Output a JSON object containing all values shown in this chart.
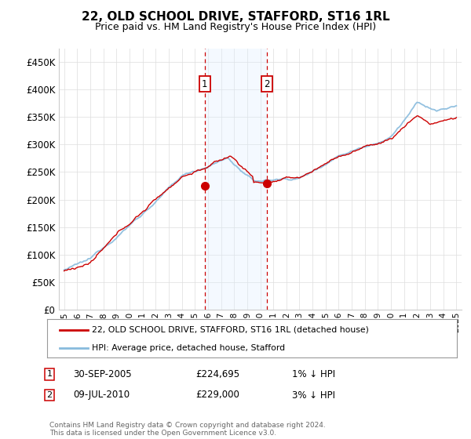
{
  "title": "22, OLD SCHOOL DRIVE, STAFFORD, ST16 1RL",
  "subtitle": "Price paid vs. HM Land Registry's House Price Index (HPI)",
  "legend_label_red": "22, OLD SCHOOL DRIVE, STAFFORD, ST16 1RL (detached house)",
  "legend_label_blue": "HPI: Average price, detached house, Stafford",
  "annotation1_date": "30-SEP-2005",
  "annotation1_price": "£224,695",
  "annotation1_hpi": "1% ↓ HPI",
  "annotation1_year": 2005.75,
  "annotation2_date": "09-JUL-2010",
  "annotation2_price": "£229,000",
  "annotation2_hpi": "3% ↓ HPI",
  "annotation2_year": 2010.5,
  "footer": "Contains HM Land Registry data © Crown copyright and database right 2024.\nThis data is licensed under the Open Government Licence v3.0.",
  "ylim": [
    0,
    475000
  ],
  "yticks": [
    0,
    50000,
    100000,
    150000,
    200000,
    250000,
    300000,
    350000,
    400000,
    450000
  ],
  "yticklabels": [
    "£0",
    "£50K",
    "£100K",
    "£150K",
    "£200K",
    "£250K",
    "£300K",
    "£350K",
    "£400K",
    "£450K"
  ],
  "xlim_start": 1994.6,
  "xlim_end": 2025.4,
  "xticks": [
    1995,
    1996,
    1997,
    1998,
    1999,
    2000,
    2001,
    2002,
    2003,
    2004,
    2005,
    2006,
    2007,
    2008,
    2009,
    2010,
    2011,
    2012,
    2013,
    2014,
    2015,
    2016,
    2017,
    2018,
    2019,
    2020,
    2021,
    2022,
    2023,
    2024,
    2025
  ],
  "red_color": "#cc0000",
  "blue_color": "#88bbdd",
  "shade_color": "#ddeeff",
  "annotation_box_color": "#cc0000",
  "grid_color": "#dddddd",
  "background_color": "#ffffff",
  "sale1_year": 2005.75,
  "sale1_price": 224695,
  "sale2_year": 2010.5,
  "sale2_price": 229000
}
